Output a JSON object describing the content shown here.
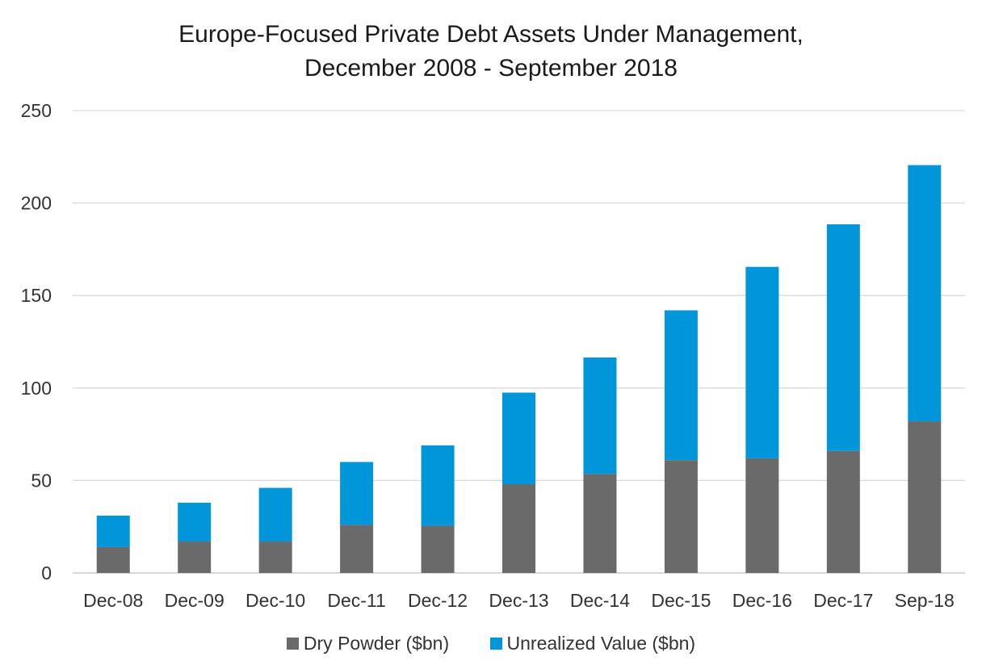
{
  "chart_data": {
    "type": "bar",
    "stacked": true,
    "title": "Europe-Focused Private Debt Assets Under Management,",
    "subtitle": "December 2008 - September 2018",
    "xlabel": "",
    "ylabel": "",
    "ylim": [
      0,
      250
    ],
    "yticks": [
      0,
      50,
      100,
      150,
      200,
      250
    ],
    "grid": true,
    "legend_position": "bottom",
    "categories": [
      "Dec-08",
      "Dec-09",
      "Dec-10",
      "Dec-11",
      "Dec-12",
      "Dec-13",
      "Dec-14",
      "Dec-15",
      "Dec-16",
      "Dec-17",
      "Sep-18"
    ],
    "series": [
      {
        "name": "Dry Powder ($bn)",
        "color": "#6b6a6a",
        "values": [
          14,
          17,
          17,
          26,
          25.5,
          48,
          53.5,
          61,
          62,
          66,
          82
        ]
      },
      {
        "name": "Unrealized Value ($bn)",
        "color": "#0096d9",
        "values": [
          17,
          21,
          29,
          34,
          43.5,
          49.5,
          63,
          81,
          103.5,
          122.5,
          138.5
        ]
      }
    ]
  }
}
